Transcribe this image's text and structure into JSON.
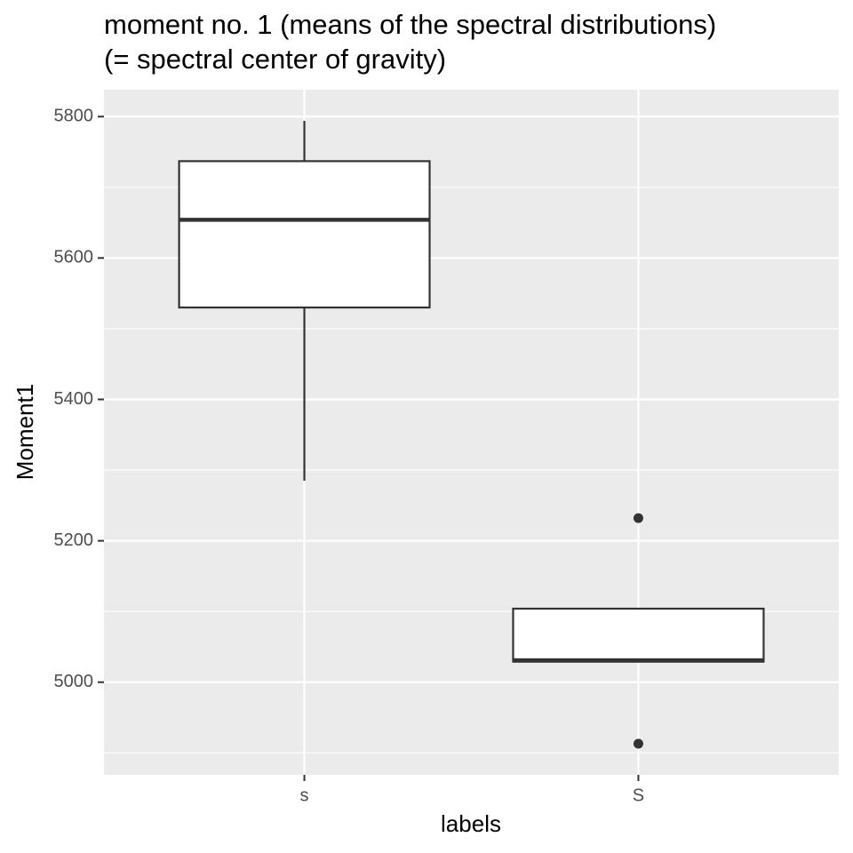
{
  "chart_data": {
    "type": "boxplot",
    "title": [
      "moment no. 1 (means of the spectral distributions)",
      "(= spectral center of gravity)"
    ],
    "x_label": "labels",
    "y_label": "Moment1",
    "categories": [
      "s",
      "S"
    ],
    "boxes": [
      {
        "whisker_low": 5285,
        "q1": 5530,
        "median": 5654,
        "q3": 5737,
        "whisker_high": 5794,
        "outliers": []
      },
      {
        "whisker_low": 5029,
        "q1": 5029,
        "median": 5031,
        "q3": 5104,
        "whisker_high": 5104,
        "outliers": [
          5232,
          4913
        ]
      }
    ],
    "box_fill": "#ffffff",
    "box_stroke": "#333333",
    "ylim": [
      4869,
      5838
    ],
    "yticks": [
      5000,
      5200,
      5400,
      5600,
      5800
    ],
    "minor_yticks": [
      4900,
      5100,
      5300,
      5500,
      5700
    ],
    "grid": true
  }
}
